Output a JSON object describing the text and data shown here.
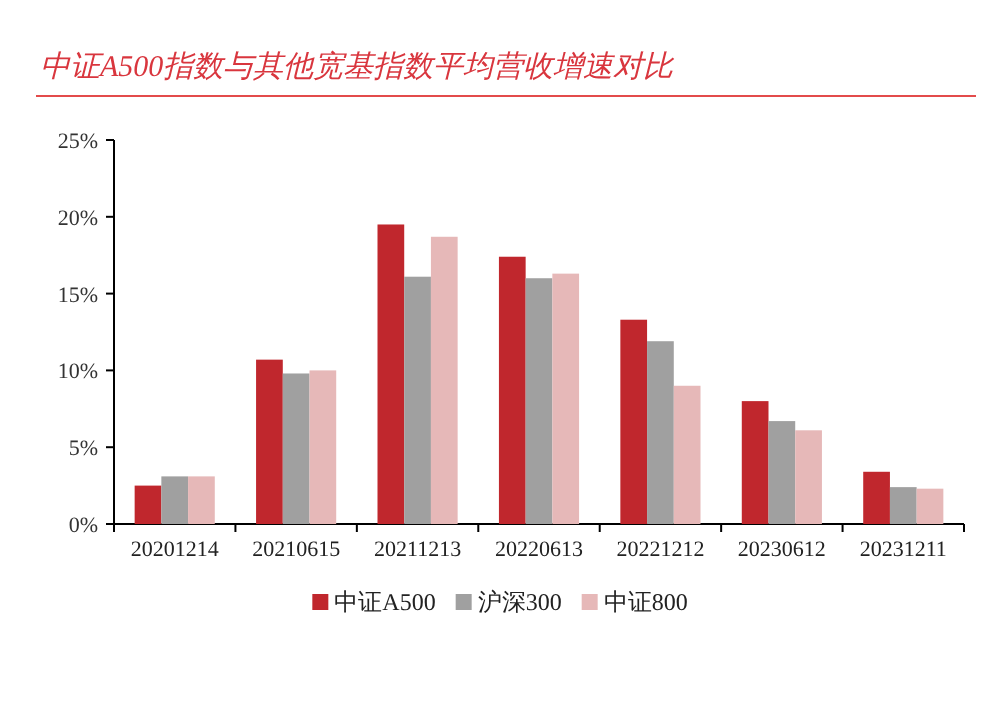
{
  "chart_data": {
    "type": "bar",
    "title": "中证A500指数与其他宽基指数平均营收增速对比",
    "categories": [
      "20201214",
      "20210615",
      "20211213",
      "20220613",
      "20221212",
      "20230612",
      "20231211"
    ],
    "series": [
      {
        "name": "中证A500",
        "color": "#c0272d",
        "values": [
          2.5,
          10.7,
          19.5,
          17.4,
          13.3,
          8.0,
          3.4
        ]
      },
      {
        "name": "沪深300",
        "color": "#a0a0a0",
        "values": [
          3.1,
          9.8,
          16.1,
          16.0,
          11.9,
          6.7,
          2.4
        ]
      },
      {
        "name": "中证800",
        "color": "#e6b8b8",
        "values": [
          3.1,
          10.0,
          18.7,
          16.3,
          9.0,
          6.1,
          2.3
        ]
      }
    ],
    "ylim": [
      0,
      25
    ],
    "yticks": [
      {
        "value": 0,
        "label": "0%"
      },
      {
        "value": 5,
        "label": "5%"
      },
      {
        "value": 10,
        "label": "10%"
      },
      {
        "value": 15,
        "label": "15%"
      },
      {
        "value": 20,
        "label": "20%"
      },
      {
        "value": 25,
        "label": "25%"
      }
    ],
    "legend": "bottom",
    "grid": false
  }
}
